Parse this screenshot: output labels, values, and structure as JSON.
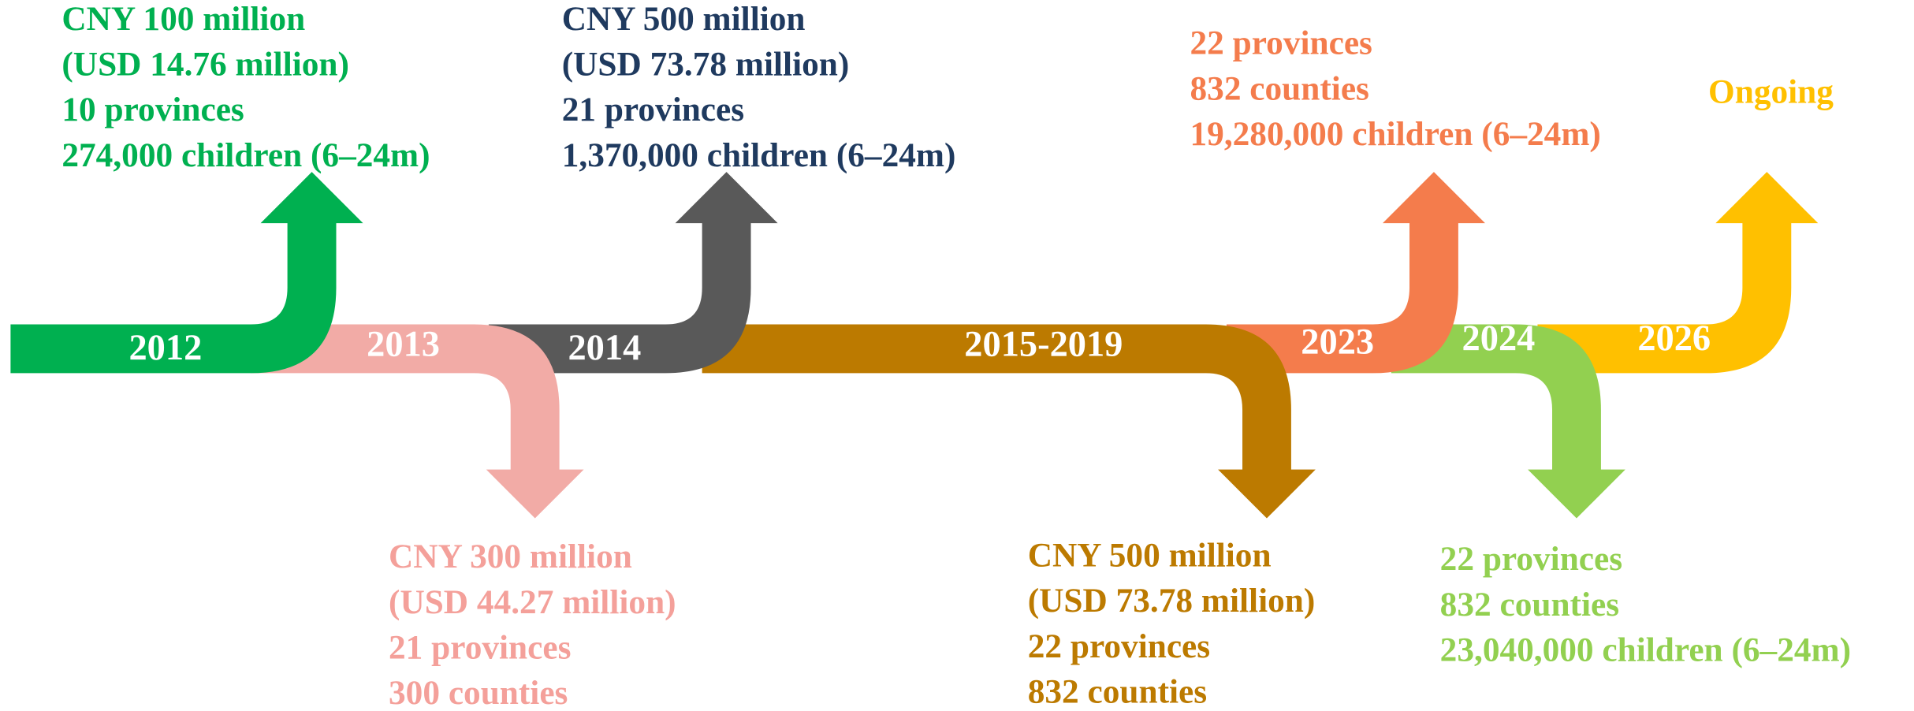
{
  "timeline": [
    {
      "year": "2012",
      "color": "#00B050",
      "text_color": "#00B050",
      "details": [
        "CNY 100 million",
        "(USD 14.76 million)",
        "10 provinces",
        "274,000 children (6–24m)"
      ]
    },
    {
      "year": "2013",
      "color": "#F2ABA6",
      "text_color": "#F4A09A",
      "details": [
        "CNY 300 million",
        "(USD 44.27 million)",
        "21 provinces",
        "300 counties"
      ]
    },
    {
      "year": "2014",
      "color": "#595959",
      "text_color": "#1F3A5F",
      "details": [
        "CNY 500 million",
        "(USD 73.78 million)",
        "21 provinces",
        "1,370,000 children (6–24m)"
      ]
    },
    {
      "year": "2015-2019",
      "color": "#BC7A00",
      "text_color": "#BC7A00",
      "details": [
        "CNY 500 million",
        "(USD 73.78 million)",
        "22 provinces",
        "832 counties"
      ]
    },
    {
      "year": "2023",
      "color": "#F47C4C",
      "text_color": "#F47C4C",
      "details": [
        "22 provinces",
        "832 counties",
        "19,280,000 children (6–24m)"
      ]
    },
    {
      "year": "2024",
      "color": "#92D050",
      "text_color": "#92D050",
      "details": [
        "22 provinces",
        "832 counties",
        "23,040,000 children (6–24m)"
      ]
    },
    {
      "year": "2026",
      "color": "#FFC000",
      "text_color": "#FFC000",
      "details": [
        "Ongoing"
      ]
    }
  ]
}
